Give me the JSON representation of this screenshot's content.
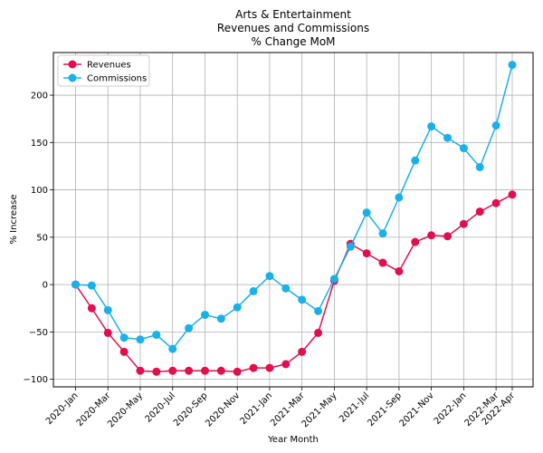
{
  "chart_data": {
    "type": "line",
    "title": [
      "Arts & Entertainment",
      "Revenues and Commissions",
      "% Change MoM"
    ],
    "xlabel": "Year Month",
    "ylabel": "% Increase",
    "grid": true,
    "legend_position": "top-left",
    "ylim": [
      -108,
      245
    ],
    "yticks": [
      -100,
      -50,
      0,
      50,
      100,
      150,
      200
    ],
    "ytick_labels": [
      "−100",
      "−50",
      "0",
      "50",
      "100",
      "150",
      "200"
    ],
    "x": [
      "2020-Jan",
      "2020-Feb",
      "2020-Mar",
      "2020-Apr",
      "2020-May",
      "2020-Jun",
      "2020-Jul",
      "2020-Aug",
      "2020-Sep",
      "2020-Oct",
      "2020-Nov",
      "2020-Dec",
      "2021-Jan",
      "2021-Feb",
      "2021-Mar",
      "2021-Apr",
      "2021-May",
      "2021-Jun",
      "2021-Jul",
      "2021-Aug",
      "2021-Sep",
      "2021-Oct",
      "2021-Nov",
      "2021-Dec",
      "2022-Jan",
      "2022-Feb",
      "2022-Mar",
      "2022-Apr"
    ],
    "xtick_labels": [
      "2020-Jan",
      "2020-Mar",
      "2020-May",
      "2020-Jul",
      "2020-Sep",
      "2020-Nov",
      "2021-Jan",
      "2021-Mar",
      "2021-May",
      "2021-Jul",
      "2021-Sep",
      "2021-Nov",
      "2022-Jan",
      "2022-Mar",
      "2022-Apr"
    ],
    "series": [
      {
        "name": "Revenues",
        "color": "#e0104f",
        "values": [
          0,
          -25,
          -51,
          -71,
          -91,
          -92,
          -91,
          -91,
          -91,
          -91,
          -92,
          -88,
          -88,
          -84,
          -71,
          -51,
          4,
          43,
          33,
          23,
          14,
          45,
          52,
          51,
          64,
          77,
          86,
          95
        ]
      },
      {
        "name": "Commissions",
        "color": "#1ab0e8",
        "values": [
          0,
          -1,
          -27,
          -56,
          -58,
          -53,
          -68,
          -46,
          -32,
          -36,
          -24,
          -7,
          9,
          -4,
          -16,
          -28,
          6,
          40,
          76,
          54,
          92,
          131,
          167,
          155,
          144,
          124,
          168,
          232
        ]
      }
    ]
  }
}
